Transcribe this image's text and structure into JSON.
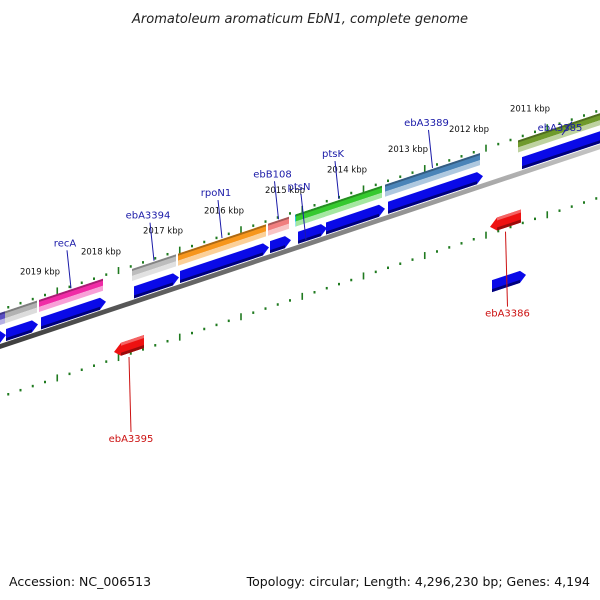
{
  "title": "Aromatoleum aromaticum EbN1, complete genome",
  "footer": {
    "accession": "Accession: NC_006513",
    "summary": "Topology: circular; Length: 4,296,230 bp; Genes: 4,194"
  },
  "kbp_ticks": [
    {
      "label": "2019 kbp",
      "pos": 40
    },
    {
      "label": "2018 kbp",
      "pos": 101
    },
    {
      "label": "2017 kbp",
      "pos": 163
    },
    {
      "label": "2016 kbp",
      "pos": 224
    },
    {
      "label": "2015 kbp",
      "pos": 285
    },
    {
      "label": "2014 kbp",
      "pos": 347
    },
    {
      "label": "2013 kbp",
      "pos": 408
    },
    {
      "label": "2012 kbp",
      "pos": 469
    },
    {
      "label": "2011 kbp",
      "pos": 530
    }
  ],
  "genes": [
    {
      "name": "",
      "start": -10,
      "end": 5,
      "strand": "fwd",
      "color": "#5b4fc2"
    },
    {
      "name": "",
      "start": 5,
      "end": 37,
      "strand": "fwd",
      "color": "#b2b2b2"
    },
    {
      "name": "recA",
      "start": 39,
      "end": 103,
      "strand": "fwd",
      "color": "#f02ba6",
      "label_color": "#1a1aa8"
    },
    {
      "name": "ebA3394",
      "start": 132,
      "end": 176,
      "strand": "fwd",
      "color": "#bdbdbd",
      "label_color": "#1a1aa8"
    },
    {
      "name": "rpoN1",
      "start": 178,
      "end": 266,
      "strand": "fwd",
      "color": "#f7961c",
      "label_color": "#1a1aa8"
    },
    {
      "name": "ebB108",
      "start": 268,
      "end": 289,
      "strand": "fwd",
      "color": "#f07f7f",
      "label_color": "#1a1aa8"
    },
    {
      "name": "ptsN",
      "start": 295,
      "end": 325,
      "strand": "fwd",
      "color": "#22c6d6",
      "label_color": "#1a1aa8"
    },
    {
      "name": "ptsK",
      "start": 296,
      "end": 382,
      "strand": "fwd",
      "color": "#36c92f",
      "label_color": "#1a1aa8"
    },
    {
      "name": "ebA3389",
      "start": 385,
      "end": 480,
      "strand": "fwd",
      "color": "#4a84b8",
      "label_color": "#1a1aa8"
    },
    {
      "name": "ebA3385",
      "start": 518,
      "end": 610,
      "strand": "fwd",
      "color": "#6f9a2c",
      "label_color": "#1a1aa8"
    },
    {
      "name": "ebA3395",
      "start": 114,
      "end": 144,
      "strand": "rev",
      "color": "#ee1111",
      "label_color": "#cc1111"
    },
    {
      "name": "ebA3386",
      "start": 490,
      "end": 521,
      "strand": "rev",
      "color": "#ee1111",
      "label_color": "#cc1111"
    }
  ],
  "cds": [
    {
      "start": -10,
      "end": 6,
      "dir": "fwd"
    },
    {
      "start": 6,
      "end": 38,
      "dir": "fwd"
    },
    {
      "start": 41,
      "end": 106,
      "dir": "fwd"
    },
    {
      "start": 134,
      "end": 179,
      "dir": "fwd"
    },
    {
      "start": 180,
      "end": 269,
      "dir": "fwd"
    },
    {
      "start": 270,
      "end": 291,
      "dir": "fwd"
    },
    {
      "start": 298,
      "end": 327,
      "dir": "fwd"
    },
    {
      "start": 326,
      "end": 385,
      "dir": "fwd"
    },
    {
      "start": 388,
      "end": 483,
      "dir": "fwd"
    },
    {
      "start": 522,
      "end": 610,
      "dir": "fwd"
    },
    {
      "start": 492,
      "end": 526,
      "dir": "fwd"
    }
  ]
}
